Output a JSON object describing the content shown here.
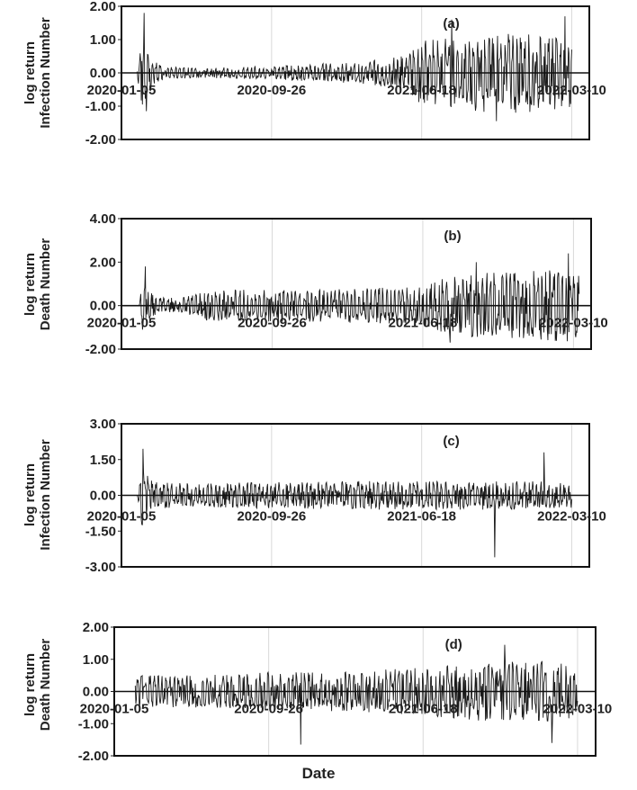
{
  "chart_data": [
    {
      "type": "line",
      "panel_label": "(a)",
      "ylabel_lines": [
        "log return",
        "Infection Number"
      ],
      "yticks": [
        "2.00",
        "1.00",
        "0.00",
        "-1.00",
        "-2.00"
      ],
      "ylim": [
        -2,
        2
      ],
      "xticks": [
        "2020-01-05",
        "2020-09-26",
        "2021-06-18",
        "2022-03-10"
      ],
      "xlim": [
        "2020-01-05",
        "2022-04-10"
      ],
      "grid": "vertical",
      "series": [
        {
          "x_range": [
            "2020-01-05",
            "2022-03-10"
          ],
          "envelope": [
            [
              "2020-01-05",
              0.0
            ],
            [
              "2020-02-01",
              0.0
            ],
            [
              "2020-02-10",
              1.1
            ],
            [
              "2020-02-25",
              0.55
            ],
            [
              "2020-03-20",
              0.18
            ],
            [
              "2020-06-01",
              0.15
            ],
            [
              "2020-09-26",
              0.2
            ],
            [
              "2020-12-25",
              0.28
            ],
            [
              "2021-02-20",
              0.3
            ],
            [
              "2021-05-15",
              0.5
            ],
            [
              "2021-06-18",
              0.95
            ],
            [
              "2021-09-15",
              1.2
            ],
            [
              "2021-12-15",
              1.2
            ],
            [
              "2022-03-10",
              1.05
            ]
          ],
          "extremes": [
            [
              "2020-02-14",
              1.8
            ],
            [
              "2020-02-18",
              -1.15
            ],
            [
              "2021-08-10",
              1.6
            ],
            [
              "2021-10-28",
              -1.45
            ],
            [
              "2022-02-26",
              1.7
            ]
          ]
        }
      ]
    },
    {
      "type": "line",
      "panel_label": "(b)",
      "ylabel_lines": [
        "log return",
        "Death Number"
      ],
      "yticks": [
        "4.00",
        "2.00",
        "0.00",
        "-2.00"
      ],
      "ylim": [
        -2,
        4
      ],
      "xticks": [
        "2020-01-05",
        "2020-09-26",
        "2021-06-18",
        "2022-03-10"
      ],
      "xlim": [
        "2020-01-05",
        "2022-04-10"
      ],
      "grid": "vertical",
      "series": [
        {
          "x_range": [
            "2020-01-05",
            "2022-03-20"
          ],
          "envelope": [
            [
              "2020-01-05",
              0.0
            ],
            [
              "2020-02-05",
              0.0
            ],
            [
              "2020-02-12",
              1.3
            ],
            [
              "2020-03-01",
              0.5
            ],
            [
              "2020-04-15",
              0.3
            ],
            [
              "2020-06-01",
              0.7
            ],
            [
              "2020-09-26",
              0.75
            ],
            [
              "2021-01-01",
              0.75
            ],
            [
              "2021-06-18",
              0.9
            ],
            [
              "2021-08-20",
              1.5
            ],
            [
              "2021-12-01",
              1.6
            ],
            [
              "2022-03-10",
              1.7
            ]
          ],
          "extremes": [
            [
              "2020-02-16",
              1.8
            ],
            [
              "2021-09-20",
              2.0
            ],
            [
              "2022-03-01",
              2.4
            ],
            [
              "2021-08-05",
              -1.7
            ]
          ]
        }
      ]
    },
    {
      "type": "line",
      "panel_label": "(c)",
      "ylabel_lines": [
        "log return",
        "Infection Number"
      ],
      "yticks": [
        "3.00",
        "1.50",
        "0.00",
        "-1.50",
        "-3.00"
      ],
      "ylim": [
        -3,
        3
      ],
      "xticks": [
        "2020-01-05",
        "2020-09-26",
        "2021-06-18",
        "2022-03-10"
      ],
      "xlim": [
        "2020-01-05",
        "2022-04-10"
      ],
      "grid": "vertical",
      "series": [
        {
          "x_range": [
            "2020-01-05",
            "2022-03-10"
          ],
          "envelope": [
            [
              "2020-01-05",
              0.0
            ],
            [
              "2020-02-02",
              0.0
            ],
            [
              "2020-02-10",
              1.3
            ],
            [
              "2020-03-01",
              0.55
            ],
            [
              "2020-05-01",
              0.5
            ],
            [
              "2020-09-26",
              0.55
            ],
            [
              "2021-03-01",
              0.6
            ],
            [
              "2021-06-18",
              0.6
            ],
            [
              "2021-12-01",
              0.6
            ],
            [
              "2022-03-10",
              0.55
            ]
          ],
          "extremes": [
            [
              "2020-02-12",
              1.95
            ],
            [
              "2021-10-25",
              -2.6
            ],
            [
              "2022-01-20",
              1.8
            ]
          ]
        }
      ]
    },
    {
      "type": "line",
      "panel_label": "(d)",
      "ylabel_lines": [
        "log return",
        "Death Number"
      ],
      "yticks": [
        "2.00",
        "1.00",
        "0.00",
        "-1.00",
        "-2.00"
      ],
      "ylim": [
        -2,
        2
      ],
      "xticks": [
        "2020-01-05",
        "2020-09-26",
        "2021-06-18",
        "2022-03-10"
      ],
      "xlim": [
        "2020-01-05",
        "2022-04-10"
      ],
      "grid": "vertical",
      "series": [
        {
          "x_range": [
            "2020-02-10",
            "2022-03-10"
          ],
          "envelope": [
            [
              "2020-02-10",
              0.5
            ],
            [
              "2020-03-01",
              0.5
            ],
            [
              "2020-06-01",
              0.5
            ],
            [
              "2020-09-26",
              0.6
            ],
            [
              "2021-01-01",
              0.6
            ],
            [
              "2021-06-18",
              0.75
            ],
            [
              "2021-10-15",
              0.95
            ],
            [
              "2022-01-15",
              0.95
            ],
            [
              "2022-03-10",
              0.8
            ]
          ],
          "extremes": [
            [
              "2020-11-20",
              -1.65
            ],
            [
              "2021-11-05",
              1.45
            ],
            [
              "2022-01-25",
              -1.6
            ]
          ]
        }
      ]
    }
  ],
  "xlabel": "Date"
}
